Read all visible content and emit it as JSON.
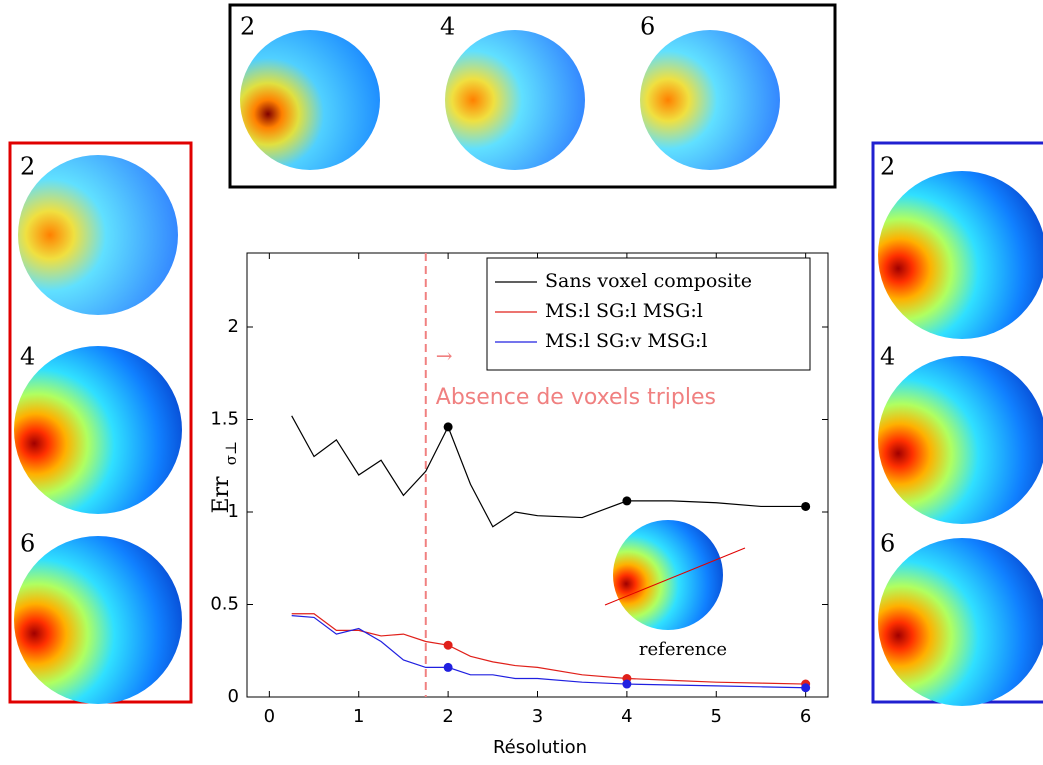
{
  "chart_data": {
    "type": "line",
    "xlabel": "Résolution",
    "ylabel": "Err",
    "ylabel_sub": "σ⊥",
    "x": [
      0.25,
      0.5,
      0.75,
      1,
      1.25,
      1.5,
      1.75,
      2,
      2.25,
      2.5,
      2.75,
      3,
      3.5,
      4,
      4.5,
      5,
      5.5,
      6
    ],
    "series": [
      {
        "name": "Sans voxel composite",
        "color": "#000000",
        "values": [
          1.52,
          1.3,
          1.39,
          1.2,
          1.28,
          1.09,
          1.22,
          1.46,
          1.15,
          0.92,
          1.0,
          0.98,
          0.97,
          1.06,
          1.06,
          1.05,
          1.03,
          1.03
        ]
      },
      {
        "name": "MS:l SG:l MSG:l",
        "color": "#e0201a",
        "values": [
          0.45,
          0.45,
          0.36,
          0.36,
          0.33,
          0.34,
          0.3,
          0.28,
          0.22,
          0.19,
          0.17,
          0.16,
          0.12,
          0.1,
          0.09,
          0.08,
          0.075,
          0.07
        ]
      },
      {
        "name": "MS:l SG:v MSG:l",
        "color": "#2020e0",
        "values": [
          0.44,
          0.43,
          0.34,
          0.37,
          0.3,
          0.2,
          0.16,
          0.16,
          0.12,
          0.12,
          0.1,
          0.1,
          0.08,
          0.07,
          0.065,
          0.06,
          0.055,
          0.05
        ]
      }
    ],
    "marker_x": [
      2,
      4,
      6
    ],
    "xlim": [
      -0.25,
      6.25
    ],
    "ylim": [
      0,
      2.4
    ],
    "xticks": [
      0,
      1,
      2,
      3,
      4,
      5,
      6
    ],
    "yticks": [
      0,
      0.5,
      1,
      1.5,
      2
    ],
    "vline_x": 1.75,
    "vline_color": "#f08080",
    "arrow": "→",
    "annotation": "Absence de voxels triples",
    "reference_label": "reference",
    "legend": "upper right",
    "grid": false
  },
  "panels": {
    "top": [
      "2",
      "4",
      "6"
    ],
    "left": [
      "2",
      "4",
      "6"
    ],
    "right": [
      "2",
      "4",
      "6"
    ]
  }
}
